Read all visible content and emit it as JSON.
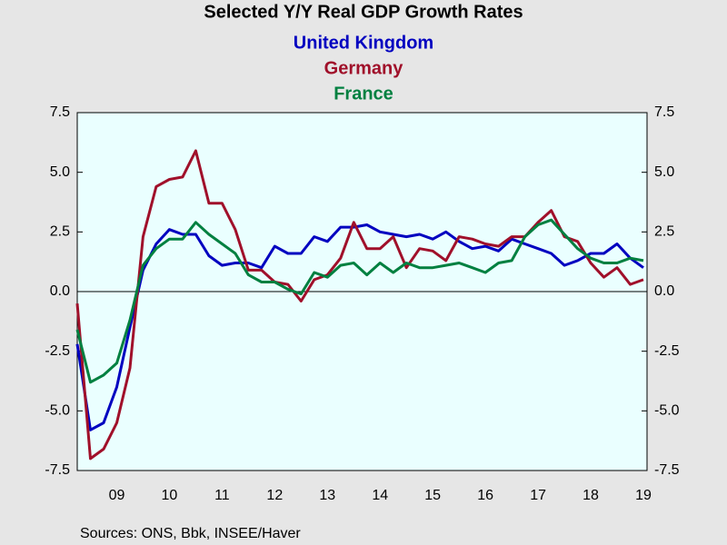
{
  "chart_data": {
    "type": "line",
    "title": "Selected Y/Y Real GDP Growth Rates",
    "source": "Sources:  ONS, Bbk, INSEE/Haver",
    "categories": [
      null,
      null,
      null,
      "09",
      null,
      null,
      null,
      "10",
      null,
      null,
      null,
      "11",
      null,
      null,
      null,
      "12",
      null,
      null,
      null,
      "13",
      null,
      null,
      null,
      "14",
      null,
      null,
      null,
      "15",
      null,
      null,
      null,
      "16",
      null,
      null,
      null,
      "17",
      null,
      null,
      null,
      "18",
      null,
      null,
      null,
      "19"
    ],
    "series": [
      {
        "name": "United Kingdom",
        "color": "#0000c0",
        "values": [
          -2.2,
          -5.8,
          -5.5,
          -4.0,
          -1.5,
          0.9,
          2.0,
          2.6,
          2.4,
          2.4,
          1.5,
          1.1,
          1.2,
          1.2,
          1.0,
          1.9,
          1.6,
          1.6,
          2.3,
          2.1,
          2.7,
          2.7,
          2.8,
          2.5,
          2.4,
          2.3,
          2.4,
          2.2,
          2.5,
          2.1,
          1.8,
          1.9,
          1.7,
          2.2,
          2.0,
          1.8,
          1.6,
          1.1,
          1.3,
          1.6,
          1.6,
          2.0,
          1.4,
          1.0
        ]
      },
      {
        "name": "Germany",
        "color": "#a0102a",
        "values": [
          -0.5,
          -7.0,
          -6.6,
          -5.5,
          -3.2,
          2.3,
          4.4,
          4.7,
          4.8,
          5.9,
          3.7,
          3.7,
          2.6,
          0.9,
          0.9,
          0.4,
          0.3,
          -0.4,
          0.5,
          0.7,
          1.4,
          2.9,
          1.8,
          1.8,
          2.3,
          1.0,
          1.8,
          1.7,
          1.3,
          2.3,
          2.2,
          2.0,
          1.9,
          2.3,
          2.3,
          2.9,
          3.4,
          2.3,
          2.1,
          1.2,
          0.6,
          1.0,
          0.3,
          0.5
        ]
      },
      {
        "name": "France",
        "color": "#008040",
        "values": [
          -1.6,
          -3.8,
          -3.5,
          -3.0,
          -1.2,
          1.1,
          1.8,
          2.2,
          2.2,
          2.9,
          2.4,
          2.0,
          1.6,
          0.7,
          0.4,
          0.4,
          0.1,
          -0.1,
          0.8,
          0.6,
          1.1,
          1.2,
          0.7,
          1.2,
          0.8,
          1.2,
          1.0,
          1.0,
          1.1,
          1.2,
          1.0,
          0.8,
          1.2,
          1.3,
          2.3,
          2.8,
          3.0,
          2.4,
          1.8,
          1.4,
          1.2,
          1.2,
          1.4,
          1.3
        ]
      }
    ],
    "ylim": [
      -7.5,
      7.5
    ],
    "yticks": [
      -7.5,
      {
        "value": -5,
        "label": "-5.0"
      },
      -2.5,
      {
        "value": 0,
        "label": "0.0"
      },
      2.5,
      {
        "value": 5,
        "label": "5.0"
      },
      7.5
    ],
    "grid": false,
    "zero_line": true,
    "legend": "top"
  }
}
